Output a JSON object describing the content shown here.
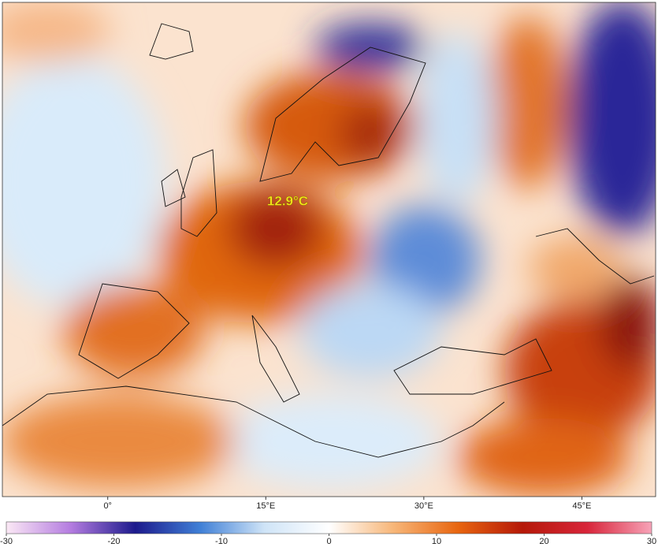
{
  "map": {
    "lonlim": [
      -10,
      52
    ],
    "lon_ticks": [
      {
        "value": 0,
        "label": "0°"
      },
      {
        "value": 15,
        "label": "15°E"
      },
      {
        "value": 30,
        "label": "30°E"
      },
      {
        "value": 45,
        "label": "45°E"
      }
    ],
    "annotation": "12.9°C"
  },
  "colorbar": {
    "range": [
      -30,
      30
    ],
    "ticks": [
      -30,
      -20,
      -10,
      0,
      10,
      20,
      30
    ],
    "colors": [
      "#fbe8f5",
      "#b47ce0",
      "#1c1a8c",
      "#3f7fd6",
      "#cfe4f7",
      "#ffffff",
      "#f7b678",
      "#e8650f",
      "#b51808",
      "#d8253a",
      "#f7a3b8"
    ]
  }
}
